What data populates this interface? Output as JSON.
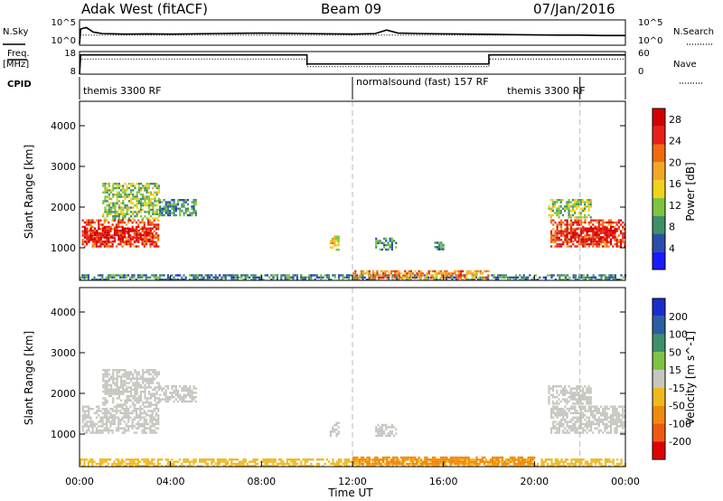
{
  "header": {
    "title": "Adak West (fitACF)",
    "beam": "Beam 09",
    "date": "07/Jan/2016"
  },
  "top_panels": {
    "nsky_label": "N.Sky",
    "nsearch_label": "N.Search",
    "freq_label_1": "Freq.",
    "freq_label_2": "[MHz]",
    "nave_label": "Nave",
    "cpid_label": "CPID",
    "noise_ticks_left": [
      "10^5",
      "10^0"
    ],
    "noise_ticks_right": [
      "10^5",
      "10^0"
    ],
    "freq_ticks_left": [
      "18",
      "8"
    ],
    "freq_ticks_right": [
      "60",
      "0"
    ],
    "cpid_segments": [
      {
        "label": "themis 3300 RF",
        "start_hour": 0
      },
      {
        "label": "normalsound (fast) 157 RF",
        "start_hour": 12
      },
      {
        "label": "themis 3300 RF",
        "start_hour": 22
      }
    ]
  },
  "colors": {
    "power_scale": [
      "#1a1aff",
      "#2a4fa8",
      "#3f8f6a",
      "#7ec440",
      "#f0d21a",
      "#f5a623",
      "#f06a10",
      "#e8201a",
      "#d40000"
    ],
    "velocity_scale": [
      "#1a2ecc",
      "#2a5fa0",
      "#3f8f6a",
      "#7ec440",
      "#c6c6c0",
      "#f0b81a",
      "#f08a10",
      "#f05a10",
      "#e00000"
    ],
    "noise_line": "#000000",
    "marker_line": "#bbbbbb"
  },
  "chart_data": [
    {
      "type": "line",
      "panel": "noise",
      "series": [
        {
          "name": "N.Sky",
          "style": "solid",
          "x": [
            0,
            0.05,
            0.3,
            0.6,
            1,
            2,
            3,
            4,
            5,
            6,
            7,
            8,
            9,
            10,
            11,
            12,
            13,
            13.5,
            14,
            15,
            16,
            17,
            18,
            19,
            20,
            21,
            22,
            23,
            24
          ],
          "y": [
            0.3,
            3.2,
            3.5,
            2.6,
            2.3,
            2.2,
            2.25,
            2.2,
            2.25,
            2.3,
            2.35,
            2.4,
            2.35,
            2.3,
            2.25,
            2.2,
            2.3,
            3.0,
            2.4,
            2.3,
            2.25,
            2.2,
            2.15,
            2.1,
            2.05,
            2.0,
            2.0,
            1.9,
            1.9
          ]
        },
        {
          "name": "N.Search",
          "style": "dotted",
          "x": [
            0,
            0.05,
            24
          ],
          "y": [
            0.3,
            2.0,
            2.0
          ]
        }
      ],
      "ylim": [
        0,
        5
      ],
      "xlim": [
        0,
        24
      ]
    },
    {
      "type": "line",
      "panel": "frequency",
      "series": [
        {
          "name": "Freq.",
          "style": "solid",
          "x": [
            0,
            0.05,
            10,
            10,
            18,
            18,
            24
          ],
          "y": [
            8,
            16.5,
            16.5,
            12.5,
            12.5,
            16.5,
            16.5
          ]
        },
        {
          "name": "Nave",
          "style": "dotted",
          "x": [
            0,
            0.05,
            10,
            10,
            18,
            18,
            24
          ],
          "y": [
            0,
            40,
            40,
            20,
            20,
            40,
            40
          ]
        }
      ],
      "ylim": [
        8,
        18
      ],
      "y2lim": [
        0,
        60
      ],
      "xlim": [
        0,
        24
      ]
    },
    {
      "type": "heatmap",
      "panel": "power",
      "ylabel": "Slant Range [km]",
      "colorbar_label": "Power [dB]",
      "colorbar_ticks": [
        4,
        8,
        12,
        16,
        20,
        24,
        28
      ],
      "colorbar_range": [
        0,
        30
      ],
      "xlim": [
        0,
        24
      ],
      "ylim": [
        200,
        4600
      ],
      "yticks": [
        1000,
        2000,
        3000,
        4000
      ],
      "vlines": [
        12,
        22
      ],
      "regions": [
        {
          "t0": 0.1,
          "t1": 3.5,
          "r0": 1000,
          "r1": 1700,
          "value": 24
        },
        {
          "t0": 0.2,
          "t1": 3.3,
          "r0": 1150,
          "r1": 1500,
          "value": 28
        },
        {
          "t0": 1.0,
          "t1": 3.5,
          "r0": 1700,
          "r1": 2600,
          "value": 12
        },
        {
          "t0": 3.5,
          "t1": 5.2,
          "r0": 1800,
          "r1": 2200,
          "value": 8
        },
        {
          "t0": 11.0,
          "t1": 11.4,
          "r0": 950,
          "r1": 1300,
          "value": 16
        },
        {
          "t0": 13.0,
          "t1": 14.0,
          "r0": 950,
          "r1": 1250,
          "value": 8
        },
        {
          "t0": 15.6,
          "t1": 16.0,
          "r0": 950,
          "r1": 1150,
          "value": 8
        },
        {
          "t0": 20.7,
          "t1": 24.0,
          "r0": 1000,
          "r1": 1700,
          "value": 24
        },
        {
          "t0": 21.4,
          "t1": 23.6,
          "r0": 1150,
          "r1": 1500,
          "value": 28
        },
        {
          "t0": 20.6,
          "t1": 22.5,
          "r0": 1700,
          "r1": 2200,
          "value": 12
        },
        {
          "t0": 0.0,
          "t1": 24.0,
          "r0": 200,
          "r1": 350,
          "value": 8
        },
        {
          "t0": 12.0,
          "t1": 18.0,
          "r0": 250,
          "r1": 450,
          "value": 20
        }
      ]
    },
    {
      "type": "heatmap",
      "panel": "velocity",
      "xlabel": "Time UT",
      "ylabel": "Slant Range [km]",
      "colorbar_label": "Velocity [m s^-1]",
      "colorbar_ticks": [
        200,
        100,
        50,
        15,
        -15,
        -50,
        -100,
        -200
      ],
      "xlim": [
        0,
        24
      ],
      "ylim": [
        200,
        4600
      ],
      "yticks": [
        1000,
        2000,
        3000,
        4000
      ],
      "xticks": [
        "00:00",
        "04:00",
        "08:00",
        "12:00",
        "16:00",
        "20:00",
        "00:00"
      ],
      "vlines": [
        12,
        22
      ],
      "regions": [
        {
          "t0": 0.1,
          "t1": 3.5,
          "r0": 1000,
          "r1": 1700,
          "value": 0
        },
        {
          "t0": 1.0,
          "t1": 3.5,
          "r0": 1700,
          "r1": 2600,
          "value": 0
        },
        {
          "t0": 3.5,
          "t1": 5.2,
          "r0": 1800,
          "r1": 2200,
          "value": 0
        },
        {
          "t0": 11.0,
          "t1": 11.4,
          "r0": 950,
          "r1": 1300,
          "value": 0
        },
        {
          "t0": 13.0,
          "t1": 14.0,
          "r0": 950,
          "r1": 1250,
          "value": 0
        },
        {
          "t0": 20.7,
          "t1": 24.0,
          "r0": 1000,
          "r1": 1700,
          "value": 0
        },
        {
          "t0": 20.6,
          "t1": 22.5,
          "r0": 1700,
          "r1": 2200,
          "value": 0
        },
        {
          "t0": 0.0,
          "t1": 24.0,
          "r0": 200,
          "r1": 400,
          "value": -40
        },
        {
          "t0": 12.0,
          "t1": 20.0,
          "r0": 220,
          "r1": 450,
          "value": -60
        }
      ]
    }
  ]
}
